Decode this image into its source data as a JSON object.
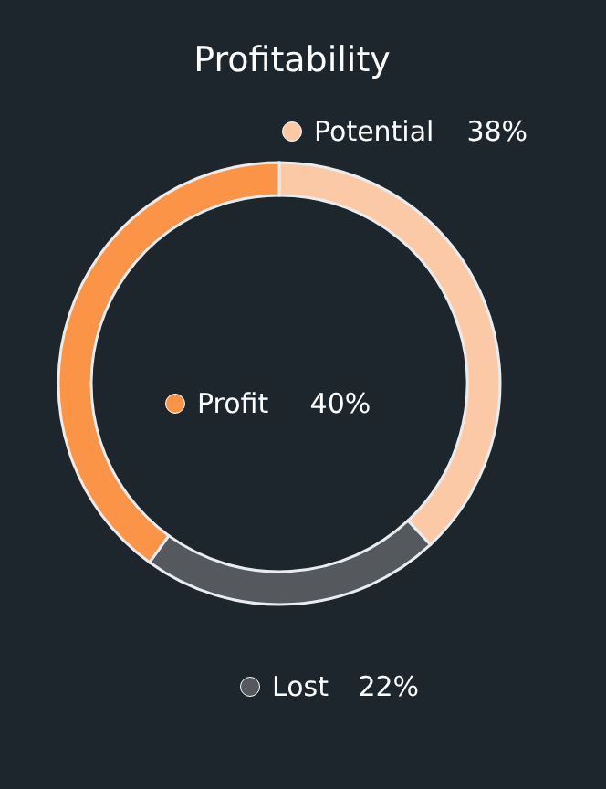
{
  "chart_data": {
    "type": "donut",
    "title": "Profitability",
    "categories": [
      "Potential",
      "Lost",
      "Profit"
    ],
    "values": [
      38,
      22,
      40
    ],
    "value_labels": [
      "38%",
      "22%",
      "40%"
    ],
    "colors": [
      "#fcc9a6",
      "#55585d",
      "#fb9446"
    ],
    "legend": "bottom right"
  }
}
